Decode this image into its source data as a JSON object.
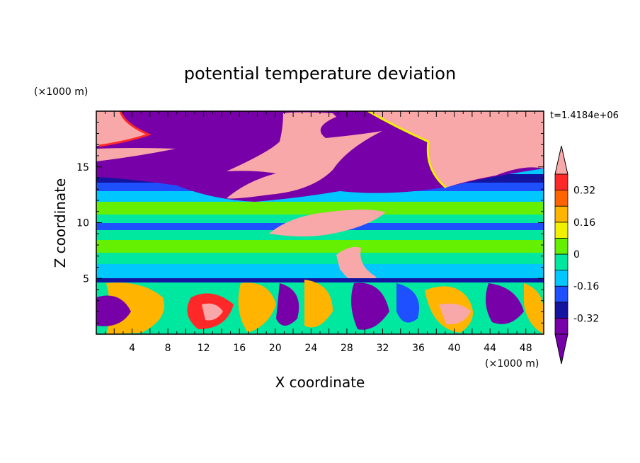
{
  "chart_data": {
    "type": "heatmap",
    "title": "potential temperature deviation",
    "xlabel": "X coordinate",
    "ylabel": "Z coordinate",
    "x_unit": "(×1000 m)",
    "y_unit": "(×1000 m)",
    "time_label": "t=1.4184e+06",
    "xlim": [
      0,
      50
    ],
    "ylim": [
      0,
      20
    ],
    "x_ticks": [
      4,
      8,
      12,
      16,
      20,
      24,
      28,
      32,
      36,
      40,
      44,
      48
    ],
    "y_ticks": [
      5,
      10,
      15
    ],
    "colorbar": {
      "levels": [
        -0.4,
        -0.32,
        -0.24,
        -0.16,
        -0.08,
        0,
        0.08,
        0.16,
        0.24,
        0.32,
        0.4
      ],
      "labels": [
        "0.32",
        "0.16",
        "0",
        "-0.16",
        "-0.32"
      ],
      "label_values": [
        0.32,
        0.16,
        0,
        -0.16,
        -0.32
      ],
      "colors": [
        "#7800a8",
        "#1414a0",
        "#1e50ff",
        "#00c8ff",
        "#00e8a0",
        "#64f000",
        "#f0f000",
        "#ffb400",
        "#ff6400",
        "#ff2828"
      ],
      "over_color": "#f8a8a8",
      "under_color": "#7800a8"
    },
    "field_summary": {
      "upper_layer": "pink (> 0.4) and purple (< -0.4) regions above z = 12",
      "middle_layer": "bands of green / cyan / blue between z = 5 and z = 12",
      "lower_layer": "turbulent mixed field below z = 5"
    }
  }
}
